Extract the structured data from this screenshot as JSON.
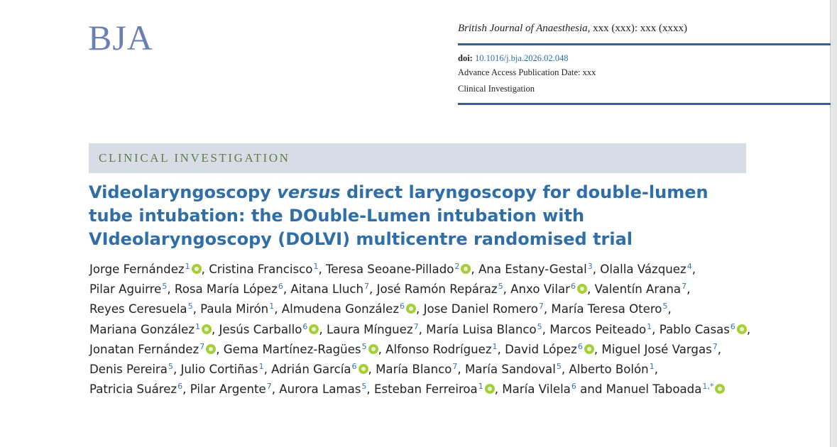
{
  "header": {
    "logo": "BJA",
    "journal_name": "British Journal of Anaesthesia",
    "journal_issue": ", xxx (xxx): xxx (xxxx)",
    "doi_label": "doi:",
    "doi": "10.1016/j.bja.2026.02.048",
    "publication_date": "Advance Access Publication Date: xxx",
    "article_type": "Clinical Investigation"
  },
  "section": "CLINICAL INVESTIGATION",
  "title": [
    "Videolaryngoscopy ",
    "versus",
    " direct laryngoscopy for double-lumen tube intubation: the DOuble-Lumen intubation with VIdeolaryngoscopy (DOLVI) multicentre randomised trial"
  ],
  "separator": ", ",
  "last_separator": " and ",
  "authors": [
    {
      "name": "Jorge Fernández",
      "affiliation": "1",
      "orcid": true
    },
    {
      "name": "Cristina Francisco",
      "affiliation": "1",
      "orcid": false
    },
    {
      "name": "Teresa Seoane-Pillado",
      "affiliation": "2",
      "orcid": true
    },
    {
      "name": "Ana Estany-Gestal",
      "affiliation": "3",
      "orcid": false
    },
    {
      "name": "Olalla Vázquez",
      "affiliation": "4",
      "orcid": false
    },
    {
      "name": "Pilar Aguirre",
      "affiliation": "5",
      "orcid": false
    },
    {
      "name": "Rosa María López",
      "affiliation": "6",
      "orcid": false
    },
    {
      "name": "Aitana Lluch",
      "affiliation": "7",
      "orcid": false
    },
    {
      "name": "José Ramón Repáraz",
      "affiliation": "5",
      "orcid": false
    },
    {
      "name": "Anxo Vilar",
      "affiliation": "6",
      "orcid": true
    },
    {
      "name": "Valentín Arana",
      "affiliation": "7",
      "orcid": false
    },
    {
      "name": "Reyes Ceresuela",
      "affiliation": "5",
      "orcid": false
    },
    {
      "name": "Paula Mirón",
      "affiliation": "1",
      "orcid": false
    },
    {
      "name": "Almudena González",
      "affiliation": "6",
      "orcid": true
    },
    {
      "name": "Jose Daniel Romero",
      "affiliation": "7",
      "orcid": false
    },
    {
      "name": "María Teresa Otero",
      "affiliation": "5",
      "orcid": false
    },
    {
      "name": "Mariana González",
      "affiliation": "1",
      "orcid": true
    },
    {
      "name": "Jesús Carballo",
      "affiliation": "6",
      "orcid": true
    },
    {
      "name": "Laura Mínguez",
      "affiliation": "7",
      "orcid": false
    },
    {
      "name": "María Luisa Blanco",
      "affiliation": "5",
      "orcid": false
    },
    {
      "name": "Marcos Peiteado",
      "affiliation": "1",
      "orcid": false
    },
    {
      "name": "Pablo Casas",
      "affiliation": "6",
      "orcid": true
    },
    {
      "name": "Jonatan Fernández",
      "affiliation": "7",
      "orcid": true
    },
    {
      "name": "Gema Martínez-Ragües",
      "affiliation": "5",
      "orcid": true
    },
    {
      "name": "Alfonso Rodríguez",
      "affiliation": "1",
      "orcid": false
    },
    {
      "name": "David López",
      "affiliation": "6",
      "orcid": true
    },
    {
      "name": "Miguel José Vargas",
      "affiliation": "7",
      "orcid": false
    },
    {
      "name": "Denis Pereira",
      "affiliation": "5",
      "orcid": false
    },
    {
      "name": "Julio Cortiñas",
      "affiliation": "1",
      "orcid": false
    },
    {
      "name": "Adrián García",
      "affiliation": "6",
      "orcid": true
    },
    {
      "name": "María Blanco",
      "affiliation": "7",
      "orcid": false
    },
    {
      "name": "María Sandoval",
      "affiliation": "5",
      "orcid": false
    },
    {
      "name": "Alberto Bolón",
      "affiliation": "1",
      "orcid": false
    },
    {
      "name": "Patricia Suárez",
      "affiliation": "6",
      "orcid": false
    },
    {
      "name": "Pilar Argente",
      "affiliation": "7",
      "orcid": false
    },
    {
      "name": "Aurora Lamas",
      "affiliation": "5",
      "orcid": false
    },
    {
      "name": "Esteban Ferreiroa",
      "affiliation": "1",
      "orcid": true
    },
    {
      "name": "María Vilela",
      "affiliation": "6",
      "orcid": false
    },
    {
      "name": "Manuel Taboada",
      "affiliation": "1,*",
      "orcid": true
    }
  ]
}
